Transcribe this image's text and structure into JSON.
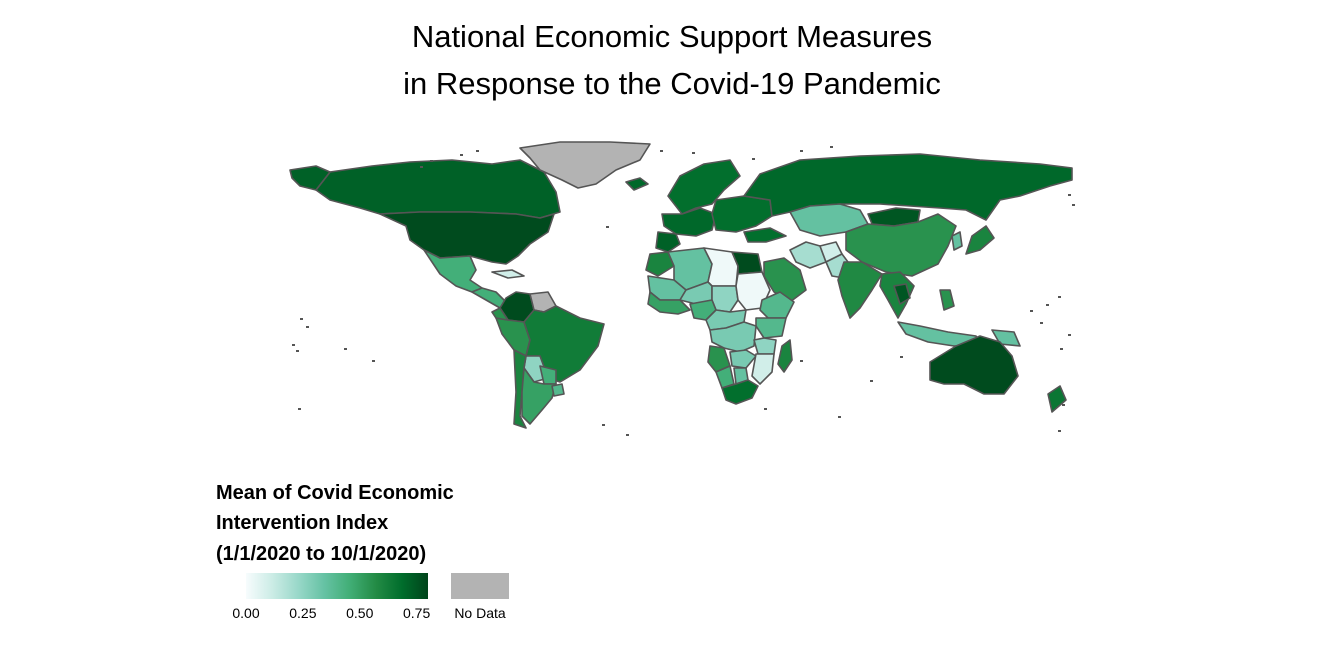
{
  "title": {
    "line1": "National Economic Support Measures",
    "line2": "in Response to the Covid-19 Pandemic"
  },
  "legend": {
    "title_line1": "Mean of Covid Economic",
    "title_line2": "Intervention Index",
    "title_line3": "(1/1/2020 to 10/1/2020)",
    "ticks": [
      "0.00",
      "0.25",
      "0.50",
      "0.75"
    ],
    "tick_values": [
      0,
      0.25,
      0.5,
      0.75
    ],
    "range": [
      0,
      0.8
    ],
    "no_data_label": "No Data"
  },
  "colors": {
    "scale": [
      "#f7fcfd",
      "#ccece6",
      "#99d8c9",
      "#66c2a4",
      "#41ae76",
      "#238b45",
      "#006d2c",
      "#00441b"
    ],
    "no_data": "#b3b3b3",
    "border": "#555555",
    "background": "#ffffff"
  },
  "map_data": {
    "projection": "equirectangular",
    "regions": [
      {
        "name": "Canada",
        "value": 0.72
      },
      {
        "name": "United States",
        "value": 0.78
      },
      {
        "name": "Alaska",
        "value": 0.72
      },
      {
        "name": "Greenland",
        "value": null
      },
      {
        "name": "Mexico",
        "value": 0.45
      },
      {
        "name": "Central America",
        "value": 0.45
      },
      {
        "name": "Cuba",
        "value": 0.1
      },
      {
        "name": "Colombia",
        "value": 0.78
      },
      {
        "name": "Venezuela",
        "value": null
      },
      {
        "name": "Peru",
        "value": 0.55
      },
      {
        "name": "Ecuador",
        "value": 0.55
      },
      {
        "name": "Brazil",
        "value": 0.63
      },
      {
        "name": "Bolivia",
        "value": 0.25
      },
      {
        "name": "Paraguay",
        "value": 0.45
      },
      {
        "name": "Chile",
        "value": 0.6
      },
      {
        "name": "Argentina",
        "value": 0.5
      },
      {
        "name": "Uruguay",
        "value": 0.4
      },
      {
        "name": "Iceland",
        "value": 0.7
      },
      {
        "name": "Scandinavia",
        "value": 0.68
      },
      {
        "name": "Western Europe",
        "value": 0.7
      },
      {
        "name": "Iberia",
        "value": 0.72
      },
      {
        "name": "Eastern Europe",
        "value": 0.68
      },
      {
        "name": "Russia",
        "value": 0.7
      },
      {
        "name": "Turkey",
        "value": 0.68
      },
      {
        "name": "Kazakhstan",
        "value": 0.35
      },
      {
        "name": "Mongolia",
        "value": 0.75
      },
      {
        "name": "China",
        "value": 0.55
      },
      {
        "name": "Japan",
        "value": 0.6
      },
      {
        "name": "Korea",
        "value": 0.35
      },
      {
        "name": "Iran",
        "value": 0.2
      },
      {
        "name": "Afghanistan",
        "value": 0.1
      },
      {
        "name": "Pakistan",
        "value": 0.2
      },
      {
        "name": "Saudi Arabia",
        "value": 0.55
      },
      {
        "name": "India",
        "value": 0.58
      },
      {
        "name": "Southeast Asia",
        "value": 0.6
      },
      {
        "name": "Thailand",
        "value": 0.75
      },
      {
        "name": "Indonesia",
        "value": 0.35
      },
      {
        "name": "Philippines",
        "value": 0.55
      },
      {
        "name": "Papua New Guinea",
        "value": 0.35
      },
      {
        "name": "Australia",
        "value": 0.78
      },
      {
        "name": "New Zealand",
        "value": 0.65
      },
      {
        "name": "Morocco",
        "value": 0.6
      },
      {
        "name": "Algeria",
        "value": 0.35
      },
      {
        "name": "Libya",
        "value": 0.02
      },
      {
        "name": "Egypt",
        "value": 0.78
      },
      {
        "name": "West Sahel",
        "value": 0.35
      },
      {
        "name": "Niger",
        "value": 0.3
      },
      {
        "name": "Chad",
        "value": 0.25
      },
      {
        "name": "Sudan",
        "value": 0.02
      },
      {
        "name": "Ethiopia",
        "value": 0.4
      },
      {
        "name": "West Africa",
        "value": 0.5
      },
      {
        "name": "Nigeria",
        "value": 0.45
      },
      {
        "name": "Central Africa",
        "value": 0.3
      },
      {
        "name": "DR Congo",
        "value": 0.3
      },
      {
        "name": "East Africa",
        "value": 0.4
      },
      {
        "name": "Tanzania",
        "value": 0.25
      },
      {
        "name": "Angola",
        "value": 0.55
      },
      {
        "name": "Zambia",
        "value": 0.3
      },
      {
        "name": "Namibia",
        "value": 0.45
      },
      {
        "name": "Botswana",
        "value": 0.35
      },
      {
        "name": "Mozambique",
        "value": 0.1
      },
      {
        "name": "South Africa",
        "value": 0.68
      },
      {
        "name": "Madagascar",
        "value": 0.6
      }
    ]
  }
}
